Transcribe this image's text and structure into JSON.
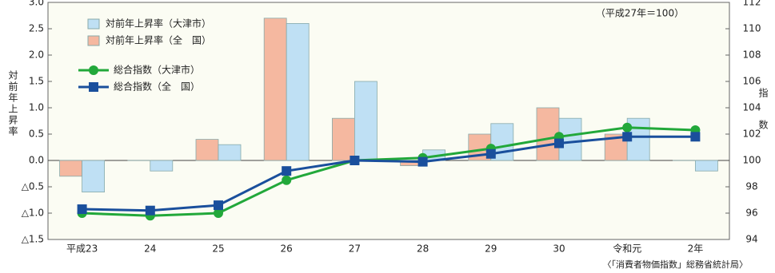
{
  "chart_data": {
    "type": "bar",
    "note": "（平成27年＝100）",
    "source": "〈「消費者物価指数」総務省統計局〉",
    "ylabel": "対前年上昇率",
    "y2label": "指数",
    "categories": [
      "平成23",
      "24",
      "25",
      "26",
      "27",
      "28",
      "29",
      "30",
      "令和元",
      "2年"
    ],
    "series": [
      {
        "name": "対前年上昇率（大津市）",
        "type": "bar",
        "color": "#bfe0f4",
        "values": [
          -0.6,
          -0.2,
          0.3,
          2.6,
          1.5,
          0.2,
          0.7,
          0.8,
          0.8,
          -0.2
        ]
      },
      {
        "name": "対前年上昇率（全　国）",
        "type": "bar",
        "color": "#f5b8a0",
        "values": [
          -0.3,
          0.0,
          0.4,
          2.7,
          0.8,
          -0.1,
          0.5,
          1.0,
          0.5,
          0.0
        ]
      },
      {
        "name": "総合指数（大津市）",
        "type": "line",
        "axis": "y2",
        "marker": "circle",
        "color": "#22a83a",
        "values": [
          96.0,
          95.8,
          96.0,
          98.5,
          100.0,
          100.2,
          100.9,
          101.8,
          102.5,
          102.3
        ]
      },
      {
        "name": "総合指数（全　国）",
        "type": "line",
        "axis": "y2",
        "marker": "square",
        "color": "#1a4f9c",
        "values": [
          96.3,
          96.2,
          96.6,
          99.2,
          100.0,
          99.9,
          100.5,
          101.3,
          101.8,
          101.8
        ]
      }
    ],
    "ylim": [
      -1.5,
      3.0
    ],
    "yticks": [
      {
        "value": 3.0,
        "label": "3.0"
      },
      2.5,
      {
        "value": 2.0,
        "label": "2.0"
      },
      1.5,
      {
        "value": 1.0,
        "label": "1.0"
      },
      0.5,
      {
        "value": 0.0,
        "label": "0.0"
      },
      {
        "value": -0.5,
        "label": "△0.5"
      },
      {
        "value": -1.0,
        "label": "△1.0"
      },
      {
        "value": -1.5,
        "label": "△1.5"
      }
    ],
    "y2lim": [
      94,
      112
    ],
    "y2ticks": [
      94,
      96,
      98,
      100,
      102,
      104,
      106,
      108,
      110,
      112
    ]
  }
}
